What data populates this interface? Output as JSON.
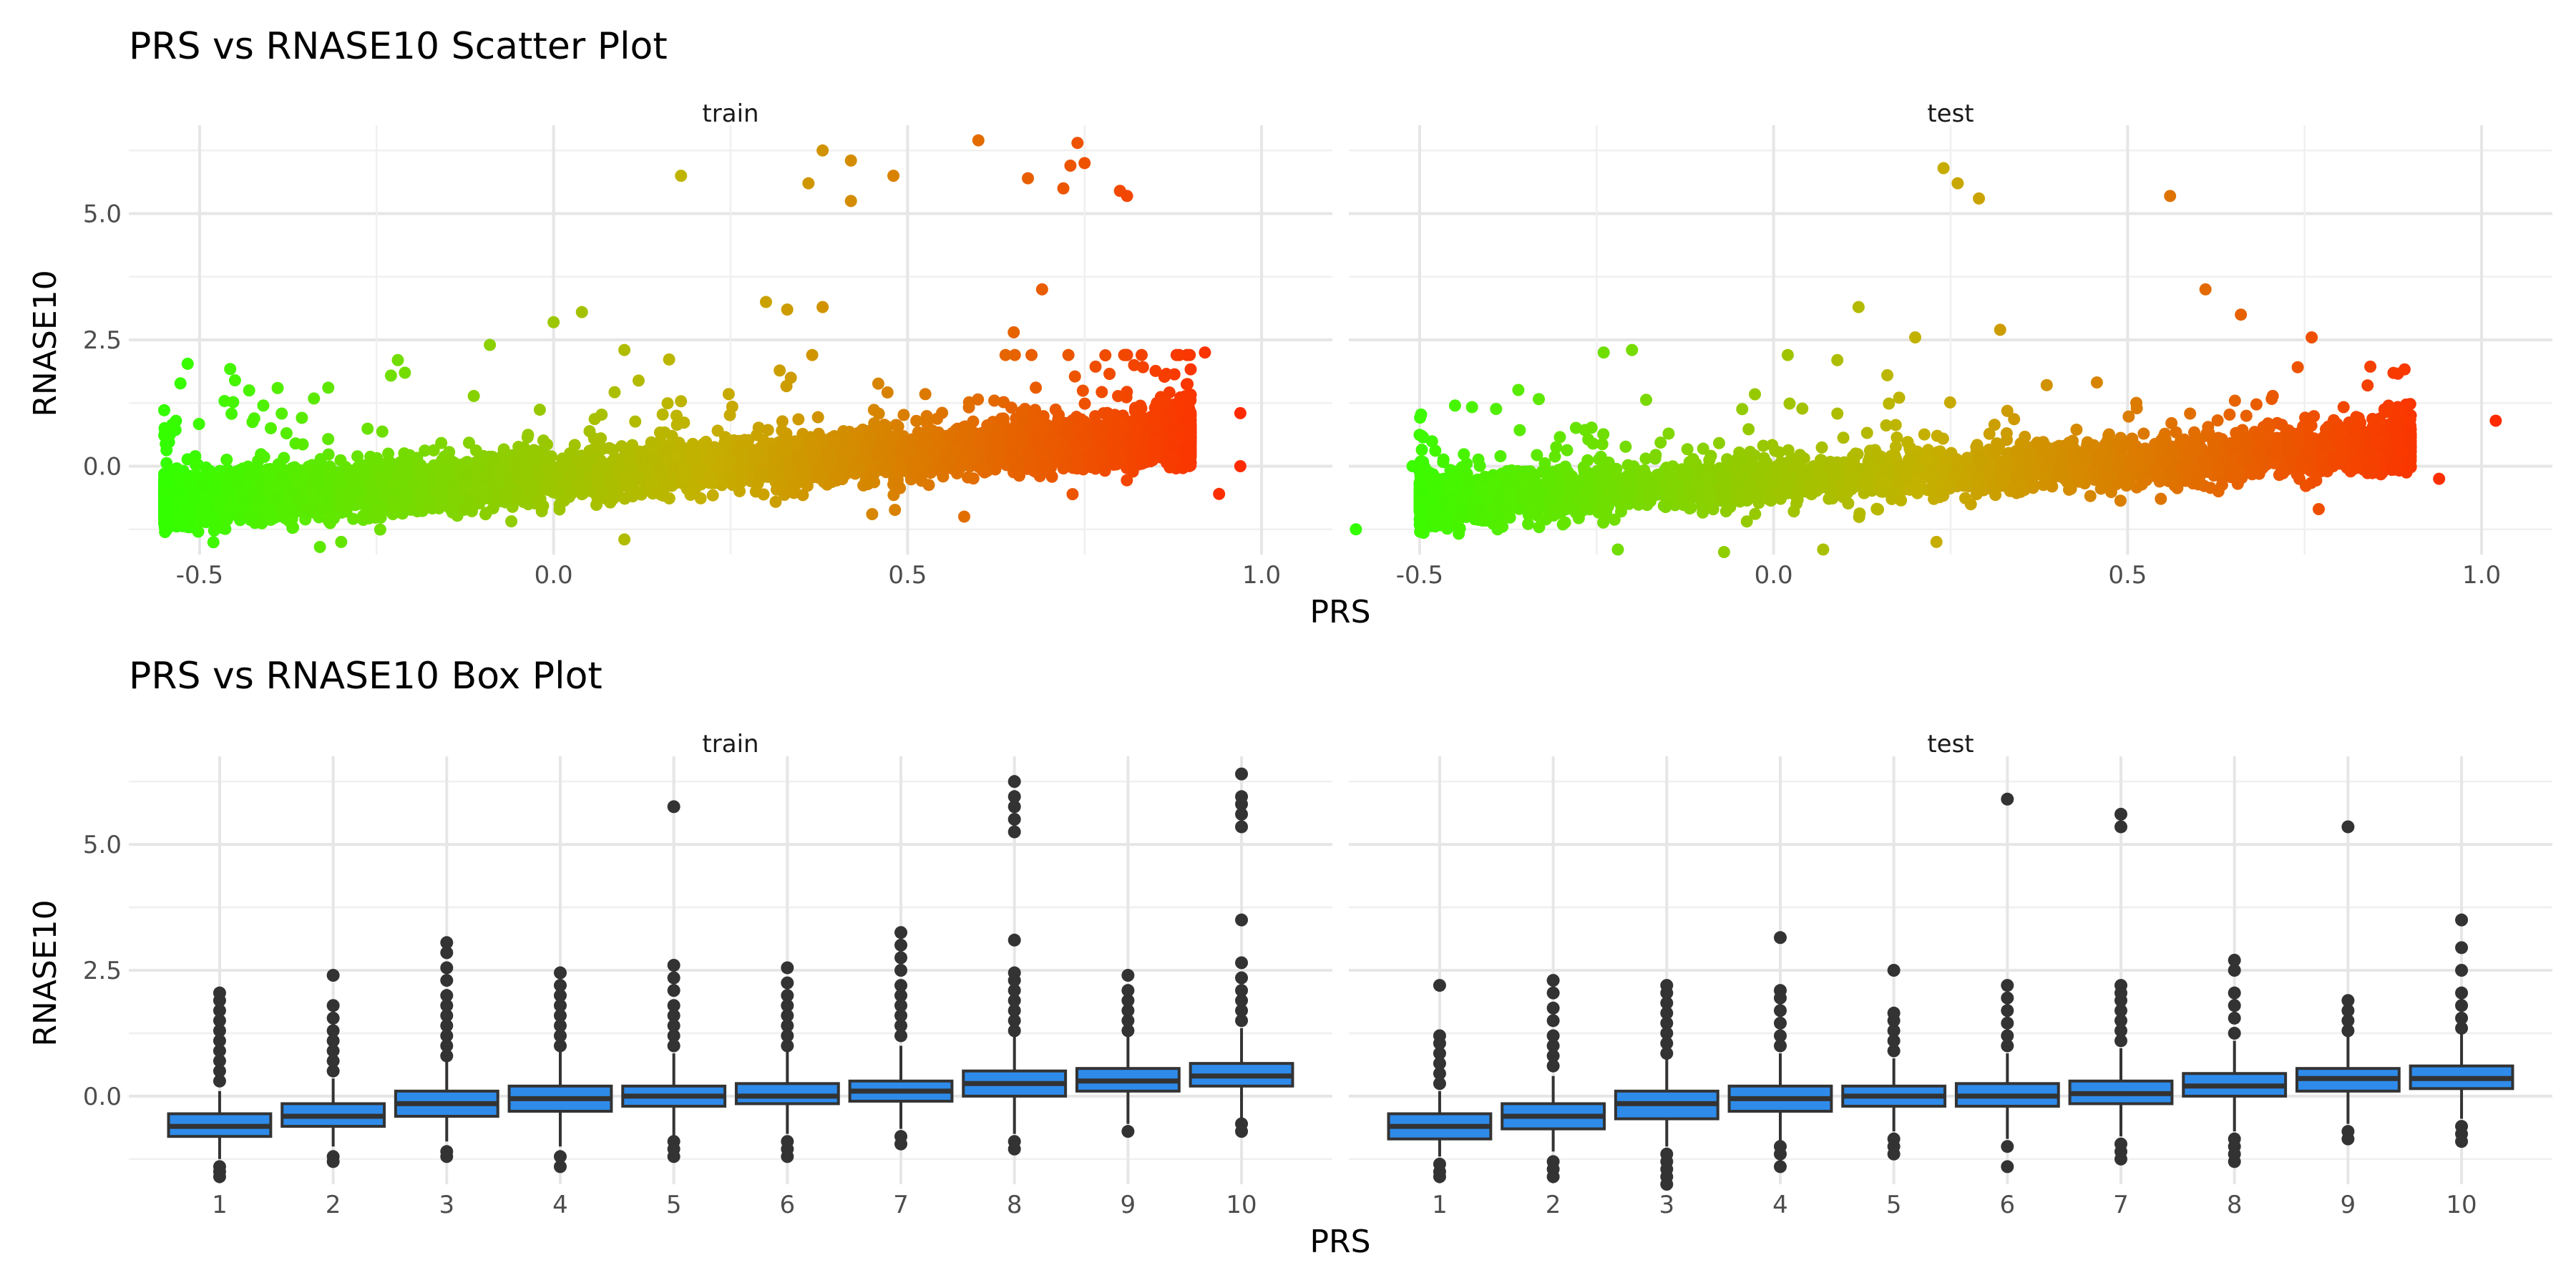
{
  "colors": {
    "low": "#33FF00",
    "mid": "#C4B100",
    "high": "#FF2A00",
    "box_fill": "#2E8BEA",
    "box_stroke": "#333333",
    "grid": "#E6E6E6"
  },
  "chart_data": [
    {
      "type": "scatter",
      "title": "PRS vs RNASE10 Scatter Plot",
      "xlabel": "PRS",
      "ylabel": "RNASE10",
      "grid": true,
      "color_mapping": "x (green to red)",
      "panels": [
        {
          "label": "train",
          "xlim": [
            -0.6,
            1.1
          ],
          "ylim": [
            -1.75,
            6.75
          ],
          "x_ticks": [
            "-0.5",
            "0.0",
            "0.5",
            "1.0"
          ],
          "x_tick_values": [
            -0.5,
            0.0,
            0.5,
            1.0
          ],
          "y_ticks": [
            "0.0",
            "2.5",
            "5.0"
          ],
          "y_tick_values": [
            0,
            2.5,
            5.0
          ],
          "bulk_trend": {
            "x_range": [
              -0.55,
              0.9
            ],
            "intercept": -0.2,
            "slope": 0.9,
            "spread": 0.45
          },
          "points": [
            [
              0.18,
              5.75
            ],
            [
              0.38,
              6.25
            ],
            [
              0.42,
              6.05
            ],
            [
              0.36,
              5.6
            ],
            [
              0.42,
              5.25
            ],
            [
              0.48,
              5.75
            ],
            [
              0.6,
              6.45
            ],
            [
              0.74,
              6.4
            ],
            [
              0.75,
              6.0
            ],
            [
              0.73,
              5.95
            ],
            [
              0.72,
              5.5
            ],
            [
              0.67,
              5.7
            ],
            [
              0.8,
              5.45
            ],
            [
              0.81,
              5.35
            ],
            [
              0.69,
              3.5
            ],
            [
              0.3,
              3.25
            ],
            [
              0.33,
              3.1
            ],
            [
              0.38,
              3.15
            ],
            [
              0.04,
              3.05
            ],
            [
              0.0,
              2.85
            ],
            [
              0.65,
              2.65
            ],
            [
              0.92,
              2.25
            ],
            [
              0.82,
              2.0
            ],
            [
              -0.22,
              2.1
            ],
            [
              -0.21,
              1.85
            ],
            [
              -0.45,
              1.7
            ],
            [
              -0.43,
              1.5
            ],
            [
              -0.41,
              1.2
            ],
            [
              -0.09,
              2.4
            ],
            [
              0.1,
              2.3
            ],
            [
              0.97,
              1.05
            ],
            [
              0.97,
              0.0
            ],
            [
              0.94,
              -0.55
            ],
            [
              0.45,
              -0.95
            ],
            [
              0.1,
              -1.45
            ],
            [
              -0.53,
              -1.1
            ],
            [
              -0.33,
              -1.6
            ],
            [
              -0.3,
              -1.5
            ],
            [
              0.58,
              -1.0
            ]
          ]
        },
        {
          "label": "test",
          "xlim": [
            -0.6,
            1.1
          ],
          "ylim": [
            -1.75,
            6.75
          ],
          "x_ticks": [
            "-0.5",
            "0.0",
            "0.5",
            "1.0"
          ],
          "x_tick_values": [
            -0.5,
            0.0,
            0.5,
            1.0
          ],
          "y_ticks": [
            "0.0",
            "2.5",
            "5.0"
          ],
          "y_tick_values": [
            0,
            2.5,
            5.0
          ],
          "bulk_trend": {
            "x_range": [
              -0.5,
              0.9
            ],
            "intercept": -0.3,
            "slope": 0.8,
            "spread": 0.45
          },
          "points": [
            [
              0.24,
              5.9
            ],
            [
              0.26,
              5.6
            ],
            [
              0.29,
              5.3
            ],
            [
              0.56,
              5.35
            ],
            [
              0.61,
              3.5
            ],
            [
              0.66,
              3.0
            ],
            [
              0.12,
              3.15
            ],
            [
              0.2,
              2.55
            ],
            [
              0.32,
              2.7
            ],
            [
              0.76,
              2.55
            ],
            [
              -0.24,
              2.25
            ],
            [
              -0.2,
              2.3
            ],
            [
              0.02,
              2.2
            ],
            [
              0.09,
              2.1
            ],
            [
              -0.45,
              1.2
            ],
            [
              1.02,
              0.9
            ],
            [
              0.94,
              -0.25
            ],
            [
              0.77,
              -0.85
            ],
            [
              -0.59,
              -1.25
            ],
            [
              -0.51,
              0.0
            ],
            [
              -0.22,
              -1.65
            ],
            [
              0.07,
              -1.65
            ],
            [
              -0.07,
              -1.7
            ],
            [
              0.23,
              -1.5
            ]
          ]
        }
      ]
    },
    {
      "type": "box",
      "title": "PRS vs RNASE10 Box Plot",
      "xlabel": "PRS",
      "ylabel": "RNASE10",
      "grid": true,
      "categories": [
        "1",
        "2",
        "3",
        "4",
        "5",
        "6",
        "7",
        "8",
        "9",
        "10"
      ],
      "panels": [
        {
          "label": "train",
          "ylim": [
            -1.75,
            6.75
          ],
          "y_ticks": [
            "0.0",
            "2.5",
            "5.0"
          ],
          "y_tick_values": [
            0,
            2.5,
            5.0
          ],
          "boxes": [
            {
              "q1": -0.8,
              "median": -0.6,
              "q3": -0.35,
              "lower": -1.25,
              "upper": 0.1,
              "outliers": [
                -1.5,
                -1.6,
                -1.4,
                0.3,
                0.5,
                0.7,
                0.9,
                1.1,
                1.3,
                1.5,
                1.7,
                1.9,
                2.05
              ]
            },
            {
              "q1": -0.6,
              "median": -0.4,
              "q3": -0.15,
              "lower": -1.0,
              "upper": 0.35,
              "outliers": [
                -1.2,
                -1.3,
                0.5,
                0.7,
                0.9,
                1.1,
                1.3,
                1.55,
                1.8,
                2.4
              ]
            },
            {
              "q1": -0.4,
              "median": -0.15,
              "q3": 0.1,
              "lower": -0.9,
              "upper": 0.75,
              "outliers": [
                -1.1,
                -1.2,
                0.8,
                1.0,
                1.2,
                1.4,
                1.6,
                1.8,
                2.0,
                2.3,
                2.55,
                2.85,
                3.05
              ]
            },
            {
              "q1": -0.3,
              "median": -0.05,
              "q3": 0.2,
              "lower": -1.0,
              "upper": 0.9,
              "outliers": [
                -1.2,
                -1.4,
                1.0,
                1.2,
                1.4,
                1.6,
                1.8,
                2.0,
                2.2,
                2.45
              ]
            },
            {
              "q1": -0.2,
              "median": 0.0,
              "q3": 0.2,
              "lower": -0.8,
              "upper": 0.85,
              "outliers": [
                -0.9,
                -1.05,
                -1.2,
                1.0,
                1.2,
                1.4,
                1.6,
                1.8,
                2.1,
                2.35,
                2.6,
                5.75
              ]
            },
            {
              "q1": -0.15,
              "median": 0.0,
              "q3": 0.25,
              "lower": -0.75,
              "upper": 0.9,
              "outliers": [
                -0.9,
                -1.05,
                -1.2,
                1.0,
                1.2,
                1.4,
                1.6,
                1.8,
                2.0,
                2.25,
                2.55
              ]
            },
            {
              "q1": -0.1,
              "median": 0.1,
              "q3": 0.3,
              "lower": -0.65,
              "upper": 1.0,
              "outliers": [
                -0.8,
                -0.95,
                1.2,
                1.4,
                1.6,
                1.8,
                2.0,
                2.2,
                2.5,
                2.75,
                3.0,
                3.25
              ]
            },
            {
              "q1": 0.0,
              "median": 0.25,
              "q3": 0.5,
              "lower": -0.75,
              "upper": 1.2,
              "outliers": [
                -0.9,
                -1.05,
                1.3,
                1.5,
                1.7,
                1.9,
                2.1,
                2.3,
                2.45,
                3.1,
                5.25,
                5.5,
                5.75,
                5.95,
                6.25
              ]
            },
            {
              "q1": 0.1,
              "median": 0.3,
              "q3": 0.55,
              "lower": -0.55,
              "upper": 1.2,
              "outliers": [
                -0.7,
                1.3,
                1.5,
                1.7,
                1.9,
                2.1,
                2.4
              ]
            },
            {
              "q1": 0.2,
              "median": 0.4,
              "q3": 0.65,
              "lower": -0.45,
              "upper": 1.35,
              "outliers": [
                -0.55,
                -0.7,
                1.5,
                1.7,
                1.9,
                2.1,
                2.35,
                2.65,
                3.5,
                5.35,
                5.6,
                5.8,
                5.95,
                6.4
              ]
            }
          ]
        },
        {
          "label": "test",
          "ylim": [
            -1.75,
            6.75
          ],
          "y_ticks": [
            "0.0",
            "2.5",
            "5.0"
          ],
          "y_tick_values": [
            0,
            2.5,
            5.0
          ],
          "boxes": [
            {
              "q1": -0.85,
              "median": -0.6,
              "q3": -0.35,
              "lower": -1.2,
              "upper": 0.1,
              "outliers": [
                -1.35,
                -1.5,
                -1.6,
                0.25,
                0.45,
                0.65,
                0.85,
                1.05,
                1.2,
                2.2
              ]
            },
            {
              "q1": -0.65,
              "median": -0.4,
              "q3": -0.15,
              "lower": -1.1,
              "upper": 0.4,
              "outliers": [
                -1.3,
                -1.45,
                -1.6,
                0.6,
                0.8,
                1.0,
                1.2,
                1.5,
                1.75,
                2.05,
                2.3
              ]
            },
            {
              "q1": -0.45,
              "median": -0.15,
              "q3": 0.1,
              "lower": -1.0,
              "upper": 0.75,
              "outliers": [
                -1.15,
                -1.3,
                -1.45,
                -1.6,
                -1.75,
                0.85,
                1.05,
                1.25,
                1.45,
                1.65,
                1.85,
                2.05,
                2.2
              ]
            },
            {
              "q1": -0.3,
              "median": -0.05,
              "q3": 0.2,
              "lower": -0.9,
              "upper": 0.85,
              "outliers": [
                -1.0,
                -1.15,
                -1.4,
                1.0,
                1.2,
                1.45,
                1.7,
                1.95,
                2.1,
                3.15
              ]
            },
            {
              "q1": -0.2,
              "median": 0.0,
              "q3": 0.2,
              "lower": -0.7,
              "upper": 0.75,
              "outliers": [
                -0.85,
                -1.0,
                -1.15,
                0.9,
                1.1,
                1.3,
                1.5,
                1.65,
                2.5
              ]
            },
            {
              "q1": -0.2,
              "median": 0.0,
              "q3": 0.25,
              "lower": -0.85,
              "upper": 0.85,
              "outliers": [
                -1.0,
                -1.4,
                1.0,
                1.2,
                1.45,
                1.7,
                1.95,
                2.2,
                5.9
              ]
            },
            {
              "q1": -0.15,
              "median": 0.05,
              "q3": 0.3,
              "lower": -0.8,
              "upper": 0.95,
              "outliers": [
                -0.95,
                -1.1,
                -1.25,
                1.1,
                1.3,
                1.5,
                1.7,
                1.9,
                2.05,
                2.2,
                5.35,
                5.6
              ]
            },
            {
              "q1": 0.0,
              "median": 0.2,
              "q3": 0.45,
              "lower": -0.7,
              "upper": 1.1,
              "outliers": [
                -0.85,
                -1.0,
                -1.15,
                -1.3,
                1.25,
                1.55,
                1.8,
                2.05,
                2.5,
                2.7
              ]
            },
            {
              "q1": 0.1,
              "median": 0.35,
              "q3": 0.55,
              "lower": -0.55,
              "upper": 1.2,
              "outliers": [
                -0.7,
                -0.85,
                1.3,
                1.5,
                1.7,
                1.9,
                5.35
              ]
            },
            {
              "q1": 0.15,
              "median": 0.35,
              "q3": 0.6,
              "lower": -0.45,
              "upper": 1.25,
              "outliers": [
                -0.6,
                -0.75,
                -0.9,
                1.35,
                1.55,
                1.8,
                2.05,
                2.5,
                2.95,
                3.5
              ]
            }
          ]
        }
      ]
    }
  ]
}
